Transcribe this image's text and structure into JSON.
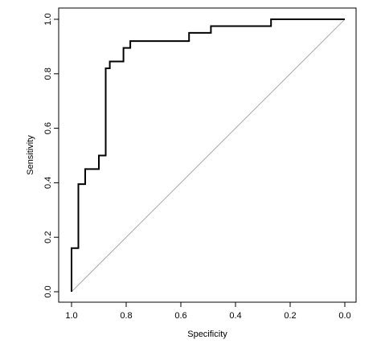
{
  "chart_data": {
    "type": "line",
    "title": "",
    "xlabel": "Specificity",
    "ylabel": "Sensitivity",
    "xlim": [
      1.0,
      0.0
    ],
    "ylim": [
      0.0,
      1.0
    ],
    "x_reversed": true,
    "grid": false,
    "legend": "none",
    "x_ticks": [
      1.0,
      0.8,
      0.6,
      0.4,
      0.2,
      0.0
    ],
    "x_tick_labels": [
      "1.0",
      "0.8",
      "0.6",
      "0.4",
      "0.2",
      "0.0"
    ],
    "y_ticks": [
      0.0,
      0.2,
      0.4,
      0.6,
      0.8,
      1.0
    ],
    "y_tick_labels": [
      "0.0",
      "0.2",
      "0.4",
      "0.6",
      "0.8",
      "1.0"
    ],
    "series": [
      {
        "style": "step",
        "color": "#000000",
        "x": [
          1.0,
          1.0,
          0.975,
          0.975,
          0.95,
          0.95,
          0.9,
          0.9,
          0.875,
          0.875,
          0.86,
          0.86,
          0.81,
          0.81,
          0.785,
          0.785,
          0.76,
          0.76,
          0.57,
          0.57,
          0.49,
          0.49,
          0.27,
          0.27,
          0.0
        ],
        "y": [
          0.0,
          0.16,
          0.16,
          0.395,
          0.395,
          0.45,
          0.45,
          0.5,
          0.5,
          0.82,
          0.82,
          0.845,
          0.845,
          0.895,
          0.895,
          0.92,
          0.92,
          0.92,
          0.92,
          0.95,
          0.95,
          0.975,
          0.975,
          1.0,
          1.0
        ]
      }
    ],
    "reference_line": {
      "x": [
        1.0,
        0.0
      ],
      "y": [
        0.0,
        1.0
      ],
      "color": "#aaaaaa"
    },
    "frame_color": "#000000"
  }
}
